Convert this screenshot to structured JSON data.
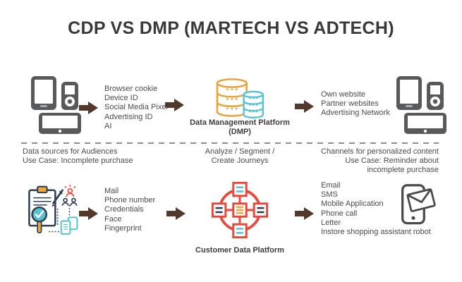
{
  "title": "CDP VS DMP (MARTECH VS ADTECH)",
  "top": {
    "sources": [
      "Browser cookie",
      "Device ID",
      "Social Media Pixel",
      "Advertising ID",
      "AI"
    ],
    "platform": {
      "line1": "Data Management Platform",
      "line2": "(DMP)"
    },
    "channels": [
      "Own website",
      "Partner websites",
      "Advertising Network"
    ]
  },
  "middle": {
    "left": {
      "line1": "Data sources for Audiences",
      "line2": "Use Case: Incomplete purchase"
    },
    "center": {
      "line1": "Analyze / Segment /",
      "line2": "Create Journeys"
    },
    "right": {
      "line1": "Channels for personalized content",
      "line2": "Use Case: Reminder about",
      "line3": "incomplete purchase"
    }
  },
  "bottom": {
    "sources": [
      "Mail",
      "Phone number",
      "Credentials",
      "Face",
      "Fingerprint"
    ],
    "platform": {
      "label": "Customer Data Platform"
    },
    "channels": [
      "Email",
      "SMS",
      "Mobile Application",
      "Phone call",
      "Letter",
      "Instore shopping assistant robot"
    ]
  },
  "icons": {
    "top_left": "devices-icon",
    "top_center": "databases-icon",
    "top_right": "devices-icon",
    "bottom_left": "audience-research-icon",
    "bottom_center": "network-nodes-icon",
    "bottom_right": "phone-envelope-icon",
    "connector": "arrow-right-icon"
  },
  "colors": {
    "title_text": "#39393b",
    "body_text": "#4b4b4d",
    "arrow_brown": "#53392c",
    "device_gray": "#58595b",
    "dmp_orange": "#e8a33d",
    "teal": "#56c3d2",
    "cdp_red": "#e8473a",
    "navy": "#2e3f54",
    "divider_gray": "#8d8d8f"
  }
}
